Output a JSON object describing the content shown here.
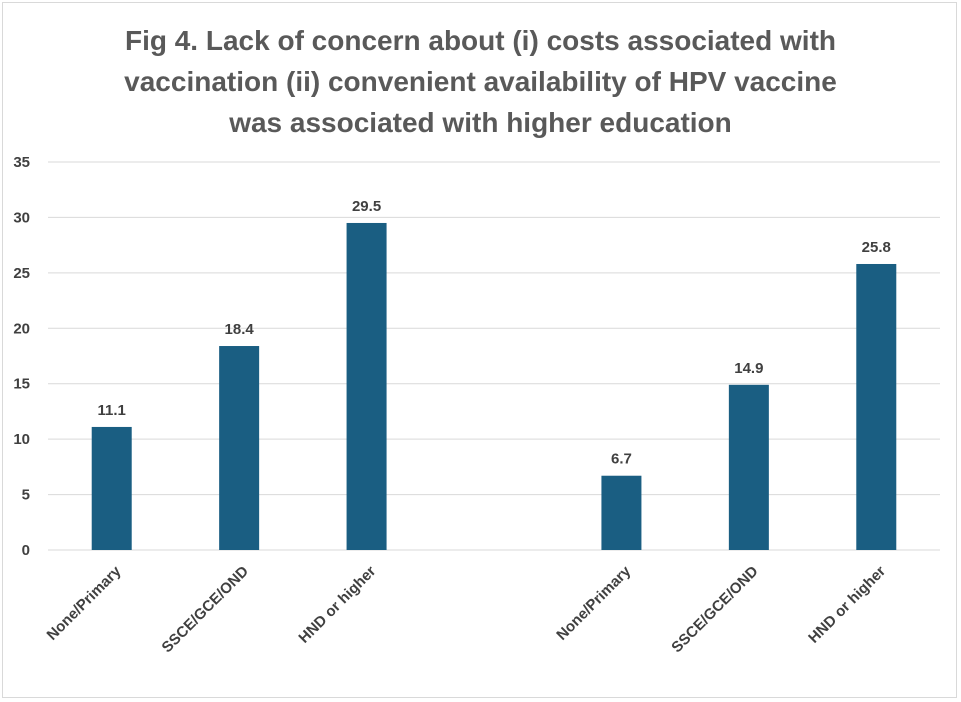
{
  "chart_data": {
    "type": "bar",
    "title_lines": [
      "Fig 4. Lack of concern about (i) costs associated with",
      "vaccination (ii) convenient availability of HPV vaccine",
      "was associated with higher education"
    ],
    "categories": [
      "None/Primary",
      "SSCE/GCE/OND",
      "HND or higher",
      "",
      "None/Primary",
      "SSCE/GCE/OND",
      "HND or higher"
    ],
    "values": [
      11.1,
      18.4,
      29.5,
      null,
      6.7,
      14.9,
      25.8
    ],
    "value_labels": [
      "11.1",
      "18.4",
      "29.5",
      "",
      "6.7",
      "14.9",
      "25.8"
    ],
    "ylim": [
      0,
      35
    ],
    "yticks": [
      "0",
      "5",
      "10",
      "15",
      "20",
      "25",
      "30",
      "35"
    ],
    "grid": true,
    "bar_color": "#1a5e82",
    "grid_color": "#d9d9d9"
  }
}
